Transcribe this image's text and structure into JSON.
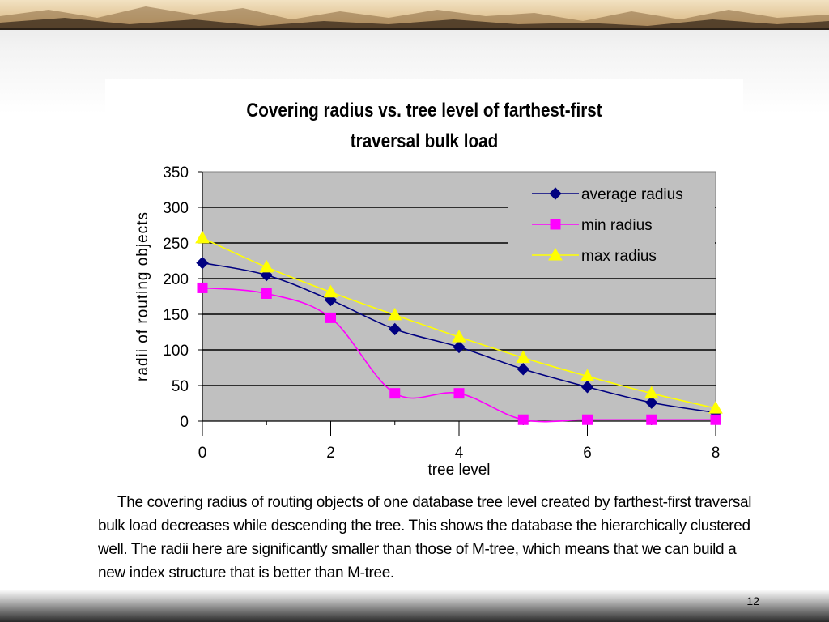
{
  "slide": {
    "caption": "The covering radius of routing objects of one database tree level created by farthest-first traversal bulk load decreases while descending the tree. This shows the database the hierarchically clustered well. The radii here are significantly smaller than those of M-tree, which means that we can build a new index structure that is better than M-tree.",
    "page_number": "12"
  },
  "chart_data": {
    "type": "line",
    "title_line1": "Covering radius vs. tree level of farthest-first",
    "title_line2": "traversal bulk load",
    "xlabel": "tree level",
    "ylabel": "radii of routing objects",
    "x": [
      0,
      1,
      2,
      3,
      4,
      5,
      6,
      7,
      8
    ],
    "xlim": [
      0,
      8
    ],
    "ylim": [
      0,
      350
    ],
    "x_ticks": [
      0,
      2,
      4,
      6,
      8
    ],
    "y_ticks": [
      0,
      50,
      100,
      150,
      200,
      250,
      300,
      350
    ],
    "grid": "horizontal",
    "plot_background": "#c0c0c0",
    "legend_position": "top-right",
    "smooth": true,
    "series": [
      {
        "name": "average radius",
        "color": "#000080",
        "marker": "diamond",
        "values": [
          222,
          205,
          170,
          129,
          104,
          73,
          48,
          26,
          12
        ]
      },
      {
        "name": "min radius",
        "color": "#ff00ff",
        "marker": "square",
        "values": [
          187,
          179,
          145,
          39,
          39,
          2,
          2,
          2,
          2
        ]
      },
      {
        "name": "max radius",
        "color": "#ffff00",
        "marker": "triangle",
        "values": [
          257,
          216,
          181,
          149,
          118,
          89,
          63,
          39,
          18
        ]
      }
    ]
  }
}
